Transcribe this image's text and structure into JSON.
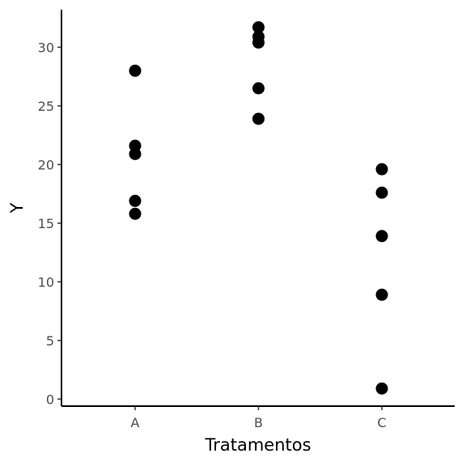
{
  "chart_data": {
    "type": "scatter",
    "xlabel": "Tratamentos",
    "ylabel": "Y",
    "categories": [
      "A",
      "B",
      "C"
    ],
    "ylim": [
      -0.6,
      33.2
    ],
    "yticks": [
      0,
      5,
      10,
      15,
      20,
      25,
      30
    ],
    "grid": false,
    "legend": "none",
    "point_color": "#000000",
    "points": [
      {
        "x": "A",
        "y": 28.0
      },
      {
        "x": "A",
        "y": 21.6
      },
      {
        "x": "A",
        "y": 20.9
      },
      {
        "x": "A",
        "y": 16.9
      },
      {
        "x": "A",
        "y": 15.8
      },
      {
        "x": "B",
        "y": 31.7
      },
      {
        "x": "B",
        "y": 30.9
      },
      {
        "x": "B",
        "y": 30.4
      },
      {
        "x": "B",
        "y": 26.5
      },
      {
        "x": "B",
        "y": 23.9
      },
      {
        "x": "C",
        "y": 19.6
      },
      {
        "x": "C",
        "y": 17.6
      },
      {
        "x": "C",
        "y": 13.9
      },
      {
        "x": "C",
        "y": 8.9
      },
      {
        "x": "C",
        "y": 0.9
      }
    ]
  }
}
